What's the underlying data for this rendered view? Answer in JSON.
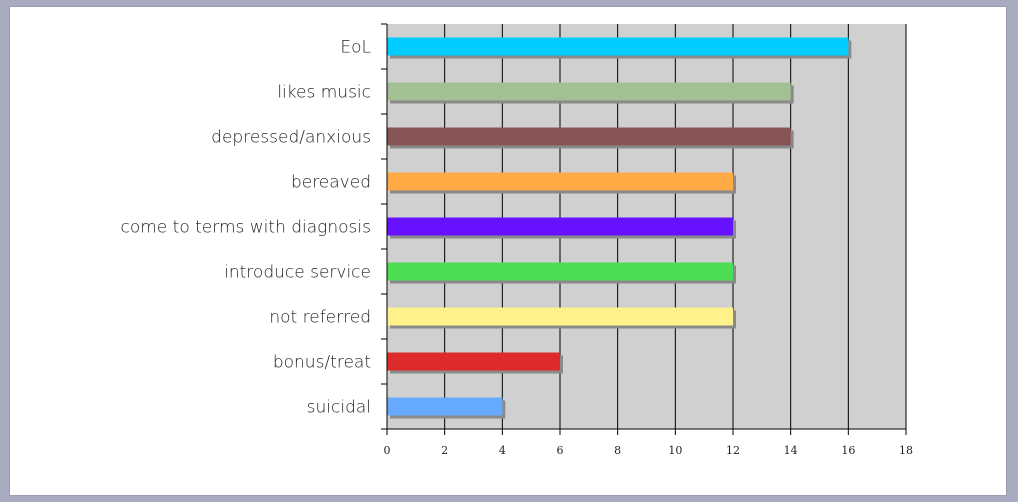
{
  "chart_data": {
    "type": "bar",
    "orientation": "horizontal",
    "categories": [
      "EoL",
      "likes music",
      "depressed/anxious",
      "bereaved",
      "come to terms with diagnosis",
      "introduce service",
      "not referred",
      "bonus/treat",
      "suicidal"
    ],
    "values": [
      16,
      14,
      14,
      12,
      12,
      12,
      12,
      6,
      4
    ],
    "colors": [
      "#00ccff",
      "#a3bf94",
      "#875555",
      "#ffaa44",
      "#6611ff",
      "#4ddd55",
      "#fff28a",
      "#dd2a2a",
      "#66aaff"
    ],
    "xlim": [
      0,
      18
    ],
    "xticks": [
      "0",
      "2",
      "4",
      "6",
      "8",
      "10",
      "12",
      "14",
      "16",
      "18"
    ],
    "grid": true,
    "plot_background": "#d0d0d0"
  }
}
